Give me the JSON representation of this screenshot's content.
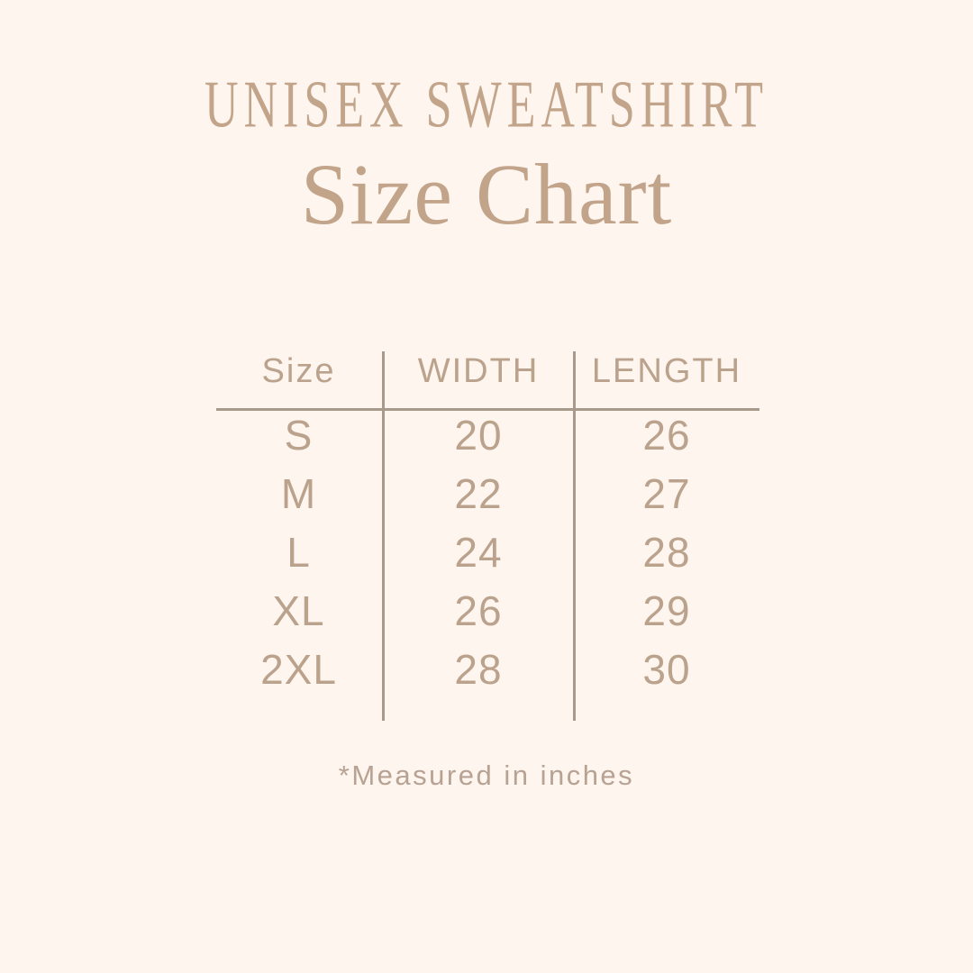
{
  "page": {
    "background_color": "#fdf5ee",
    "accent_color": "#c2a48a",
    "table_text_color": "#bba28d",
    "line_color": "#a89a8b"
  },
  "header": {
    "eyebrow": "UNISEX SWEATSHIRT",
    "title": "Size Chart"
  },
  "table": {
    "columns": [
      "Size",
      "WIDTH",
      "LENGTH"
    ],
    "rows": [
      {
        "size": "S",
        "width": "20",
        "length": "26"
      },
      {
        "size": "M",
        "width": "22",
        "length": "27"
      },
      {
        "size": "L",
        "width": "24",
        "length": "28"
      },
      {
        "size": "XL",
        "width": "26",
        "length": "29"
      },
      {
        "size": "2XL",
        "width": "28",
        "length": "30"
      }
    ]
  },
  "footer": {
    "note": "*Measured in inches"
  },
  "chart_data": {
    "type": "table",
    "title": "UNISEX SWEATSHIRT Size Chart",
    "columns": [
      "Size",
      "WIDTH",
      "LENGTH"
    ],
    "rows": [
      [
        "S",
        20,
        26
      ],
      [
        "M",
        22,
        27
      ],
      [
        "L",
        24,
        28
      ],
      [
        "XL",
        26,
        29
      ],
      [
        "2XL",
        28,
        30
      ]
    ],
    "units": "inches",
    "note": "*Measured in inches"
  }
}
